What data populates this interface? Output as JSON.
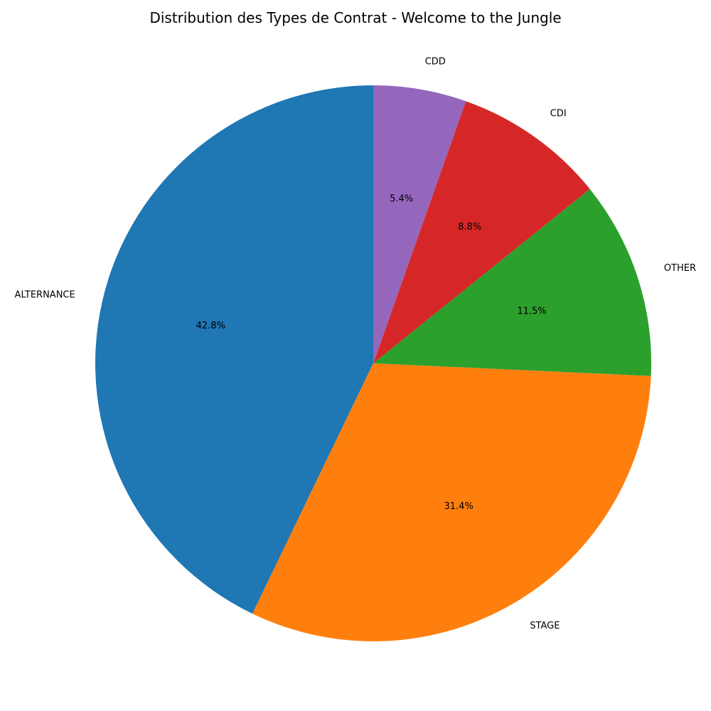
{
  "chart_data": {
    "type": "pie",
    "title": "Distribution des Types de Contrat - Welcome to the Jungle",
    "start_angle_deg": 90,
    "direction": "counterclockwise",
    "slices": [
      {
        "label": "ALTERNANCE",
        "value": 42.8,
        "pct_label": "42.8%",
        "color": "#1f77b4"
      },
      {
        "label": "STAGE",
        "value": 31.4,
        "pct_label": "31.4%",
        "color": "#ff7f0e"
      },
      {
        "label": "OTHER",
        "value": 11.5,
        "pct_label": "11.5%",
        "color": "#2ca02c"
      },
      {
        "label": "CDI",
        "value": 8.8,
        "pct_label": "8.8%",
        "color": "#d62728"
      },
      {
        "label": "CDD",
        "value": 5.4,
        "pct_label": "5.4%",
        "color": "#9467bd"
      }
    ]
  }
}
